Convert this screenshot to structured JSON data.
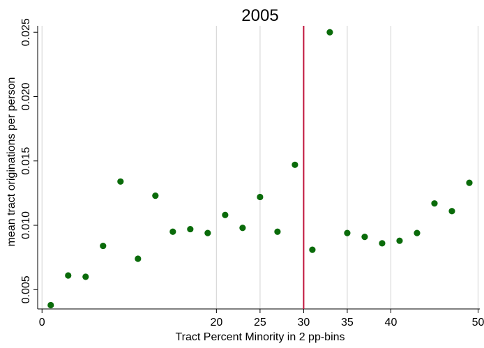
{
  "chart_data": {
    "type": "scatter",
    "title": "2005",
    "xlabel": "Tract Percent Minority in 2 pp-bins",
    "ylabel": "mean tract originations per person",
    "xlim": [
      -0.5,
      50.2
    ],
    "ylim": [
      0.0035,
      0.0255
    ],
    "x_ticks": [
      0,
      20,
      25,
      30,
      35,
      40,
      50
    ],
    "x_tick_labels": [
      "0",
      "20",
      "25",
      "30",
      "35",
      "40",
      "50"
    ],
    "y_ticks": [
      0.005,
      0.01,
      0.015,
      0.02,
      0.025
    ],
    "y_tick_labels": [
      "0.005",
      "0.010",
      "0.015",
      "0.020",
      "0.025"
    ],
    "vertical_gridlines": [
      0,
      20,
      25,
      35,
      40,
      50
    ],
    "cutoff_line": {
      "x": 30,
      "color": "#c0143c"
    },
    "point_color": "#0a6b0a",
    "grid_color": "#d9d9d9",
    "series": [
      {
        "x": [
          1,
          3,
          5,
          7,
          9,
          11,
          13,
          15,
          17,
          19,
          21,
          23,
          25,
          27,
          29,
          31,
          33,
          35,
          37,
          39,
          41,
          43,
          45,
          47,
          49
        ],
        "y": [
          0.0038,
          0.0061,
          0.006,
          0.0084,
          0.0134,
          0.0074,
          0.0123,
          0.0095,
          0.0097,
          0.0094,
          0.0108,
          0.0098,
          0.0122,
          0.0095,
          0.0147,
          0.0081,
          0.025,
          0.0094,
          0.0091,
          0.0086,
          0.0088,
          0.0094,
          0.0117,
          0.0111,
          0.0133
        ]
      }
    ]
  }
}
